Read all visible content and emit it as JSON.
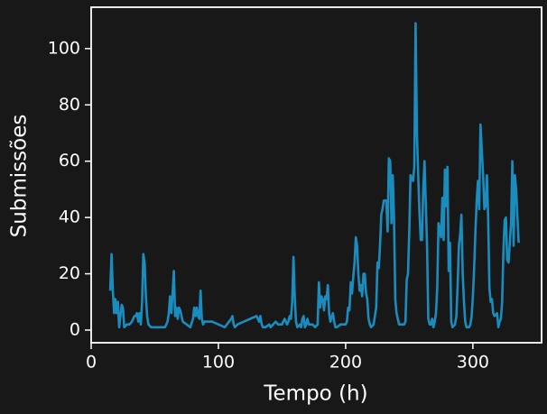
{
  "chart_data": {
    "type": "line",
    "xlabel": "Tempo (h)",
    "ylabel": "Submissões",
    "x": [
      15,
      16,
      17,
      18,
      19,
      20,
      21,
      22,
      23,
      24,
      25,
      26,
      28,
      30,
      32,
      34,
      35,
      36,
      37,
      38,
      39,
      40,
      41,
      42,
      43,
      44,
      45,
      47,
      50,
      55,
      58,
      60,
      61,
      62,
      63,
      64,
      65,
      66,
      67,
      68,
      69,
      70,
      72,
      75,
      78,
      80,
      81,
      82,
      83,
      84,
      85,
      86,
      87,
      88,
      89,
      90,
      95,
      100,
      105,
      110,
      111,
      112,
      113,
      115,
      120,
      125,
      130,
      131,
      132,
      133,
      134,
      135,
      137,
      140,
      141,
      143,
      145,
      147,
      150,
      152,
      154,
      155,
      156,
      157,
      158,
      159,
      160,
      161,
      162,
      164,
      165,
      166,
      167,
      168,
      169,
      170,
      171,
      172,
      174,
      176,
      178,
      179,
      180,
      181,
      182,
      183,
      184,
      185,
      186,
      187,
      188,
      190,
      191,
      192,
      193,
      196,
      200,
      201,
      202,
      203,
      204,
      205,
      206,
      207,
      208,
      209,
      210,
      211,
      212,
      213,
      214,
      215,
      216,
      217,
      218,
      219,
      220,
      222,
      224,
      225,
      226,
      227,
      228,
      229,
      230,
      232,
      233,
      234,
      235,
      236,
      237,
      238,
      239,
      240,
      242,
      244,
      246,
      247,
      248,
      249,
      250,
      251,
      253,
      254,
      255,
      256,
      257,
      258,
      259,
      260,
      261,
      262,
      264,
      265,
      266,
      267,
      268,
      269,
      270,
      271,
      272,
      273,
      275,
      276,
      277,
      278,
      279,
      280,
      281,
      282,
      283,
      284,
      286,
      287,
      288,
      289,
      290,
      291,
      292,
      293,
      294,
      295,
      297,
      298,
      299,
      300,
      301,
      302,
      303,
      304,
      305,
      306,
      308,
      309,
      310,
      311,
      312,
      313,
      314,
      315,
      316,
      317,
      319,
      320,
      321,
      322,
      323,
      324,
      325,
      326,
      327,
      328,
      330,
      331,
      332,
      333,
      334,
      336
    ],
    "series": [
      {
        "name": "Submissões",
        "color": "#1a8dbf",
        "values": [
          14,
          27,
          14,
          6,
          11,
          6,
          10,
          1,
          5,
          9,
          8,
          1,
          2,
          2,
          3,
          5,
          5,
          6,
          3,
          6,
          2,
          10,
          27,
          24,
          12,
          5,
          2,
          1,
          1,
          1,
          1,
          3,
          6,
          12,
          6,
          13,
          21,
          5,
          8,
          4,
          8,
          7,
          3,
          2,
          1,
          4,
          8,
          5,
          8,
          5,
          4,
          14,
          4,
          2,
          3,
          3,
          3,
          2,
          1,
          4,
          5,
          2,
          1,
          2,
          3,
          4,
          5,
          4,
          3,
          5,
          2,
          1,
          1,
          2,
          1,
          2,
          3,
          2,
          2,
          4,
          2,
          3,
          5,
          4,
          10,
          26,
          12,
          3,
          1,
          2,
          1,
          4,
          5,
          1,
          2,
          4,
          2,
          2,
          2,
          1,
          2,
          17,
          8,
          12,
          11,
          7,
          12,
          11,
          16,
          6,
          3,
          6,
          3,
          1,
          1,
          2,
          2,
          3,
          8,
          7,
          17,
          13,
          19,
          24,
          33,
          30,
          20,
          14,
          16,
          12,
          20,
          20,
          13,
          11,
          4,
          2,
          1,
          2,
          8,
          24,
          22,
          30,
          41,
          43,
          46,
          46,
          35,
          61,
          60,
          38,
          55,
          40,
          11,
          6,
          2,
          2,
          2,
          3,
          18,
          20,
          35,
          55,
          53,
          58,
          109,
          70,
          55,
          42,
          32,
          32,
          50,
          60,
          30,
          4,
          2,
          2,
          4,
          1,
          3,
          6,
          15,
          38,
          33,
          47,
          32,
          57,
          44,
          58,
          21,
          31,
          3,
          1,
          2,
          5,
          16,
          30,
          34,
          41,
          20,
          10,
          3,
          1,
          1,
          2,
          5,
          12,
          22,
          35,
          46,
          53,
          43,
          73,
          55,
          43,
          44,
          55,
          40,
          15,
          10,
          11,
          6,
          5,
          6,
          1,
          3,
          4,
          10,
          28,
          39,
          40,
          25,
          24,
          38,
          60,
          30,
          55,
          50,
          31
        ]
      }
    ],
    "xlim": [
      0,
      354
    ],
    "ylim": [
      -4.5,
      114.7
    ],
    "xticks": [
      0,
      100,
      200,
      300
    ],
    "yticks": [
      0,
      20,
      40,
      60,
      80,
      100
    ]
  }
}
